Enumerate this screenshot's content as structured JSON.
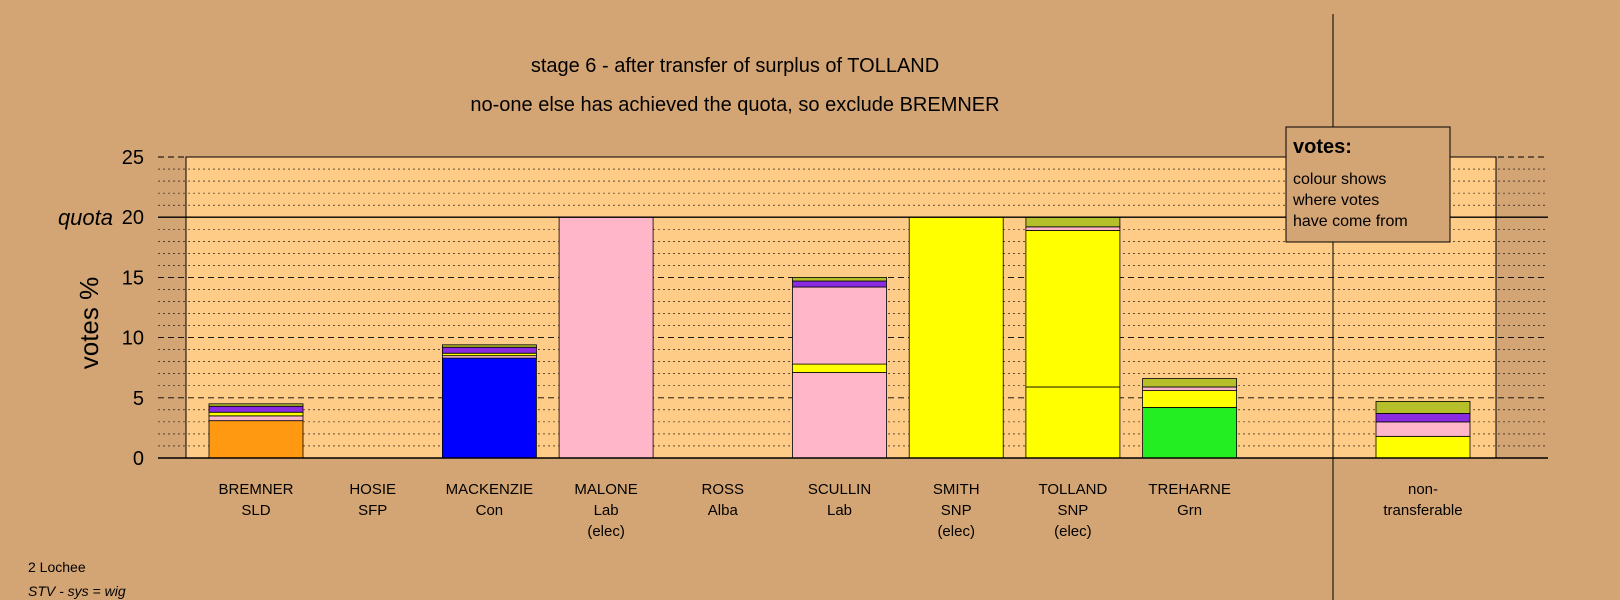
{
  "chart_data": {
    "type": "bar",
    "stacked": true,
    "title": "stage 6 - after transfer of surplus of TOLLAND",
    "subtitle": "no-one else has achieved the quota, so exclude BREMNER",
    "ylabel": "votes %",
    "ylim": [
      0,
      25
    ],
    "yticks": [
      "0",
      "5",
      "10",
      "15",
      "20",
      "25"
    ],
    "quota_label": "quota",
    "quota_value": 20,
    "grid": "dashed major every 5, dotted minor every 1",
    "categories": [
      {
        "name": "BREMNER",
        "party": "SLD",
        "note": ""
      },
      {
        "name": "HOSIE",
        "party": "SFP",
        "note": ""
      },
      {
        "name": "MACKENZIE",
        "party": "Con",
        "note": ""
      },
      {
        "name": "MALONE",
        "party": "Lab",
        "note": "(elec)"
      },
      {
        "name": "ROSS",
        "party": "Alba",
        "note": ""
      },
      {
        "name": "SCULLIN",
        "party": "Lab",
        "note": ""
      },
      {
        "name": "SMITH",
        "party": "SNP",
        "note": "(elec)"
      },
      {
        "name": "TOLLAND",
        "party": "SNP",
        "note": "(elec)"
      },
      {
        "name": "TREHARNE",
        "party": "Grn",
        "note": ""
      },
      {
        "name": "",
        "party": "",
        "note": ""
      },
      {
        "name": "non-",
        "party": "transferable",
        "note": ""
      }
    ],
    "stacks": [
      [
        {
          "value": 3.1,
          "color": "#ff9912"
        },
        {
          "value": 0.4,
          "color": "#ffb6c8"
        },
        {
          "value": 0.3,
          "color": "#ffff00"
        },
        {
          "value": 0.5,
          "color": "#8a2be2"
        },
        {
          "value": 0.2,
          "color": "#b5bf2a"
        }
      ],
      [],
      [
        {
          "value": 8.3,
          "color": "#0000ff"
        },
        {
          "value": 0.2,
          "color": "#ffb6c8"
        },
        {
          "value": 0.2,
          "color": "#ffff00"
        },
        {
          "value": 0.5,
          "color": "#8a2be2"
        },
        {
          "value": 0.2,
          "color": "#b5bf2a"
        }
      ],
      [
        {
          "value": 20,
          "color": "#ffb6c8"
        }
      ],
      [],
      [
        {
          "value": 7.1,
          "color": "#ffb6c8"
        },
        {
          "value": 0.7,
          "color": "#ffff00"
        },
        {
          "value": 6.4,
          "color": "#ffb6c8"
        },
        {
          "value": 0.5,
          "color": "#8a2be2"
        },
        {
          "value": 0.3,
          "color": "#b5bf2a"
        }
      ],
      [
        {
          "value": 20,
          "color": "#ffff00"
        }
      ],
      [
        {
          "value": 5.9,
          "color": "#ffff00"
        },
        {
          "value": 13.0,
          "color": "#ffff00"
        },
        {
          "value": 0.3,
          "color": "#ffb6c8"
        },
        {
          "value": 0.8,
          "color": "#b5bf2a"
        }
      ],
      [
        {
          "value": 4.2,
          "color": "#22ee22"
        },
        {
          "value": 1.4,
          "color": "#ffff00"
        },
        {
          "value": 0.3,
          "color": "#ffb6c8"
        },
        {
          "value": 0.7,
          "color": "#b5bf2a"
        }
      ],
      [],
      [
        {
          "value": 1.8,
          "color": "#ffff00"
        },
        {
          "value": 1.2,
          "color": "#ffb6c8"
        },
        {
          "value": 0.7,
          "color": "#8a2be2"
        },
        {
          "value": 1.0,
          "color": "#b5bf2a"
        }
      ]
    ],
    "colors": {
      "background": "#d4a574",
      "plot_area": "#ffcc88"
    }
  },
  "legend": {
    "title": "votes:",
    "lines": [
      "colour shows",
      "where votes",
      "have come from"
    ]
  },
  "footer": {
    "ward": "2 Lochee",
    "system": "STV - sys = wig"
  }
}
